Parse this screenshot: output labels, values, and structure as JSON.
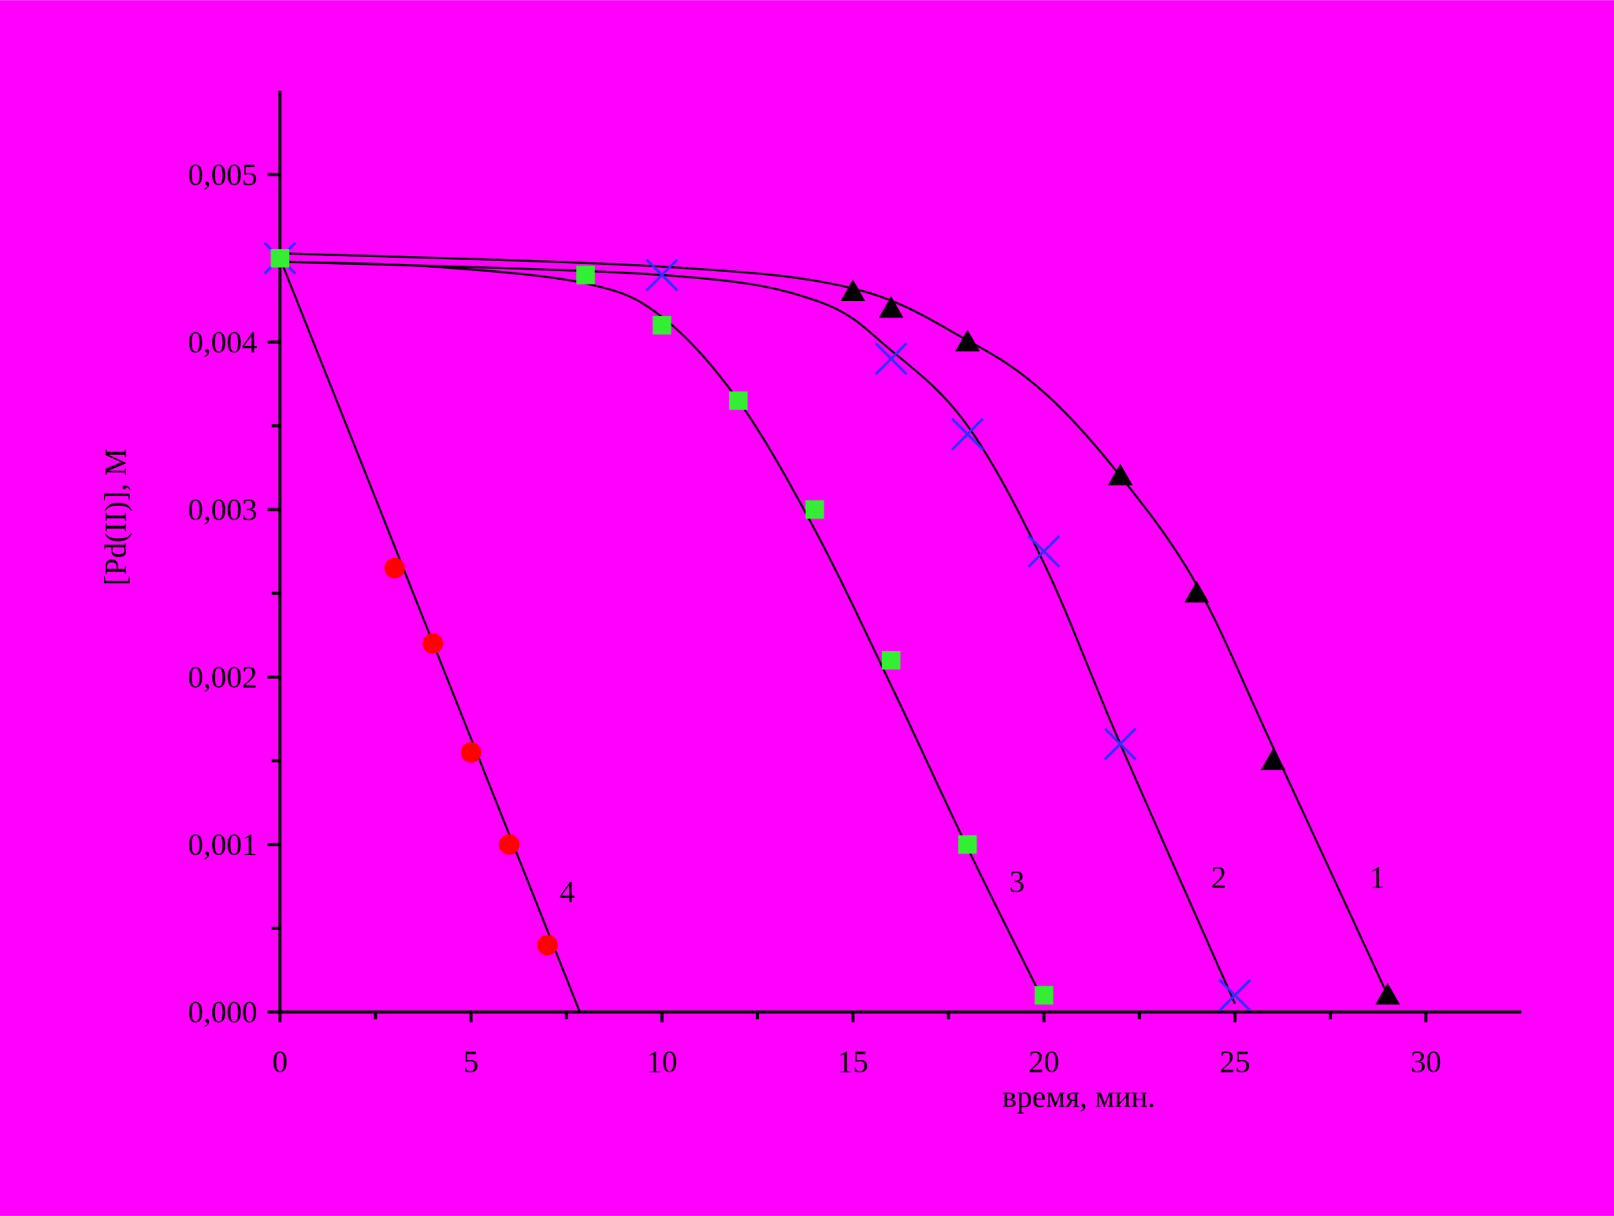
{
  "chart_data": {
    "type": "scatter",
    "x_label": "время, мин.",
    "y_label": "[Pd(II)], M",
    "background": "#ff00ff",
    "xlim": [
      0,
      32.5
    ],
    "ylim": [
      0,
      0.0055
    ],
    "xticks": [
      0,
      5,
      10,
      15,
      20,
      25,
      30
    ],
    "xminorticks": [
      2.5,
      7.5,
      12.5,
      17.5,
      22.5,
      27.5
    ],
    "yticks": [
      {
        "value": 0,
        "label": "0,000"
      },
      {
        "value": 0.001,
        "label": "0,001"
      },
      {
        "value": 0.002,
        "label": "0,002"
      },
      {
        "value": 0.003,
        "label": "0,003"
      },
      {
        "value": 0.004,
        "label": "0,004"
      },
      {
        "value": 0.005,
        "label": "0,005"
      }
    ],
    "yminorticks": [
      0.0005,
      0.0015,
      0.0025,
      0.0035,
      0.0045
    ],
    "series": [
      {
        "name": "1",
        "marker": "triangle",
        "color": "#000000",
        "x": [
          15,
          16,
          18,
          22,
          24,
          26,
          29
        ],
        "values": [
          0.0043,
          0.0042,
          0.004,
          0.0032,
          0.0025,
          0.0015,
          0.0001
        ],
        "fit": {
          "x": [
            0,
            10,
            15,
            18,
            20,
            22,
            24,
            26,
            29
          ],
          "values": [
            0.00453,
            0.00445,
            0.00432,
            0.00401,
            0.0037,
            0.0032,
            0.00255,
            0.00158,
            0.0001
          ]
        }
      },
      {
        "name": "2",
        "marker": "cross",
        "color": "#3030ff",
        "x": [
          0,
          10,
          16,
          18,
          20,
          22,
          25
        ],
        "values": [
          0.0045,
          0.0044,
          0.0039,
          0.00345,
          0.00275,
          0.0016,
          0.0001
        ],
        "fit": {
          "x": [
            0,
            10,
            14,
            16,
            18,
            20,
            22,
            25
          ],
          "values": [
            0.00448,
            0.0044,
            0.00425,
            0.00395,
            0.0035,
            0.00268,
            0.0016,
            5e-05
          ]
        }
      },
      {
        "name": "3",
        "marker": "square",
        "color": "#33ee33",
        "x": [
          0,
          8,
          10,
          12,
          14,
          16,
          18,
          20
        ],
        "values": [
          0.0045,
          0.0044,
          0.0041,
          0.00365,
          0.003,
          0.0021,
          0.001,
          0.0001
        ],
        "fit": {
          "x": [
            0,
            4,
            8,
            10,
            12,
            14,
            16,
            18,
            20
          ],
          "values": [
            0.00448,
            0.00445,
            0.00435,
            0.00415,
            0.00365,
            0.00288,
            0.00195,
            0.00098,
            6e-05
          ]
        }
      },
      {
        "name": "4",
        "marker": "circle",
        "color": "#ff0000",
        "x": [
          3,
          4,
          5,
          6,
          7
        ],
        "values": [
          0.00265,
          0.0022,
          0.00155,
          0.001,
          0.0004
        ],
        "fit": {
          "x": [
            0,
            7.85
          ],
          "values": [
            0.0045,
            0
          ]
        }
      }
    ]
  }
}
